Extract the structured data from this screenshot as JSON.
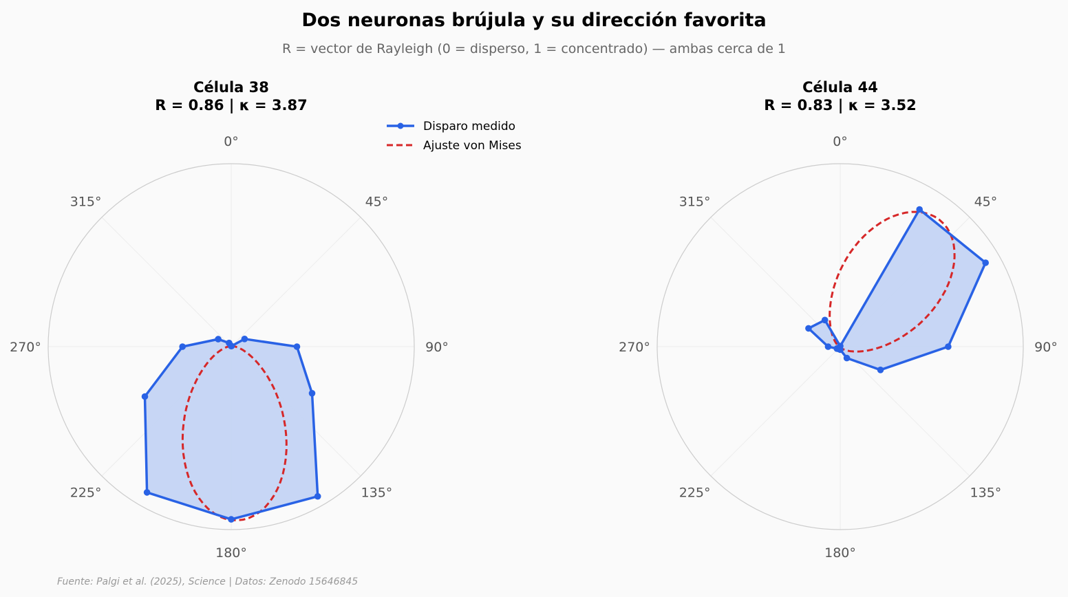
{
  "title": "Dos neuronas brújula y su dirección favorita",
  "subtitle": "R = vector de Rayleigh (0 = disperso, 1 = concentrado) — ambas cerca de 1",
  "footer": "Fuente: Palgi et al. (2025), Science | Datos: Zenodo 15646845",
  "legend": {
    "measured_label": "Disparo medido",
    "fit_label": "Ajuste von Mises"
  },
  "colors": {
    "measured": "#2962e5",
    "fill": "#c4d4f4",
    "fit": "#d62728",
    "frame": "#cccccc",
    "grid": "#ececec"
  },
  "chart_data": [
    {
      "type": "polar-line",
      "title_line1": "Célula 38",
      "title_line2": "R = 0.86  |  κ = 3.87",
      "direction": "clockwise",
      "zero_location": "N",
      "r_max": 1.0,
      "angle_tick_labels": [
        "0°",
        "45°",
        "90°",
        "135°",
        "180°",
        "225°",
        "270°",
        "315°"
      ],
      "measured": {
        "angles_deg": [
          0,
          30,
          60,
          90,
          120,
          150,
          180,
          210,
          240,
          270,
          300,
          330
        ],
        "values": [
          0.003,
          0.004,
          0.084,
          0.359,
          0.51,
          0.945,
          0.944,
          0.92,
          0.545,
          0.266,
          0.082,
          0.023
        ]
      },
      "fit": {
        "mean_direction_deg": 178,
        "kappa": 3.87,
        "peak": 0.95,
        "base": 0.0
      }
    },
    {
      "type": "polar-line",
      "title_line1": "Célula 44",
      "title_line2": "R = 0.83  |  κ = 3.52",
      "direction": "clockwise",
      "zero_location": "N",
      "r_max": 1.0,
      "angle_tick_labels": [
        "0°",
        "45°",
        "90°",
        "135°",
        "180°",
        "225°",
        "270°",
        "315°"
      ],
      "measured": {
        "angles_deg": [
          0,
          30,
          60,
          90,
          120,
          150,
          180,
          210,
          240,
          270,
          300,
          330
        ],
        "values": [
          0.003,
          0.866,
          0.917,
          0.59,
          0.254,
          0.072,
          0.016,
          0.015,
          0.021,
          0.066,
          0.2,
          0.168
        ]
      },
      "fit": {
        "mean_direction_deg": 38,
        "kappa": 3.52,
        "peak": 0.88,
        "base": 0.0
      }
    }
  ]
}
